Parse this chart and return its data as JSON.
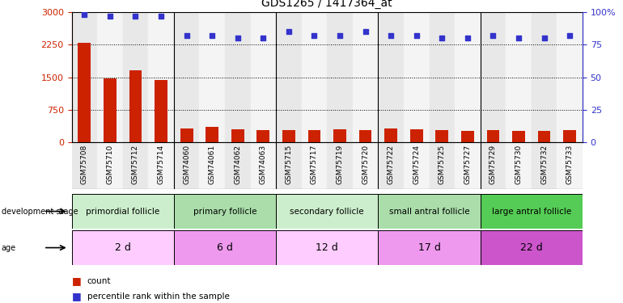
{
  "title": "GDS1265 / 1417364_at",
  "samples": [
    "GSM75708",
    "GSM75710",
    "GSM75712",
    "GSM75714",
    "GSM74060",
    "GSM74061",
    "GSM74062",
    "GSM74063",
    "GSM75715",
    "GSM75717",
    "GSM75719",
    "GSM75720",
    "GSM75722",
    "GSM75724",
    "GSM75725",
    "GSM75727",
    "GSM75729",
    "GSM75730",
    "GSM75732",
    "GSM75733"
  ],
  "counts": [
    2300,
    1470,
    1660,
    1440,
    330,
    350,
    310,
    290,
    280,
    290,
    300,
    290,
    320,
    300,
    280,
    270,
    290,
    270,
    265,
    280
  ],
  "percentile": [
    98,
    97,
    97,
    97,
    82,
    82,
    80,
    80,
    85,
    82,
    82,
    85,
    82,
    82,
    80,
    80,
    82,
    80,
    80,
    82
  ],
  "ylim_left": [
    0,
    3000
  ],
  "ylim_right": [
    0,
    100
  ],
  "yticks_left": [
    0,
    750,
    1500,
    2250,
    3000
  ],
  "yticks_right": [
    0,
    25,
    50,
    75,
    100
  ],
  "bar_color": "#cc2200",
  "dot_color": "#3333cc",
  "groups": [
    {
      "label": "primordial follicle",
      "age": "2 d",
      "start": 0,
      "end": 4,
      "color_stage": "#cceecc",
      "color_age": "#ffccff"
    },
    {
      "label": "primary follicle",
      "age": "6 d",
      "start": 4,
      "end": 8,
      "color_stage": "#aaddaa",
      "color_age": "#ee99ee"
    },
    {
      "label": "secondary follicle",
      "age": "12 d",
      "start": 8,
      "end": 12,
      "color_stage": "#cceecc",
      "color_age": "#ffccff"
    },
    {
      "label": "small antral follicle",
      "age": "17 d",
      "start": 12,
      "end": 16,
      "color_stage": "#aaddaa",
      "color_age": "#ee99ee"
    },
    {
      "label": "large antral follicle",
      "age": "22 d",
      "start": 16,
      "end": 20,
      "color_stage": "#55cc55",
      "color_age": "#cc55cc"
    }
  ],
  "legend_count_color": "#cc2200",
  "legend_pct_color": "#3333cc",
  "col_bg_even": "#e8e8e8",
  "col_bg_odd": "#f4f4f4"
}
